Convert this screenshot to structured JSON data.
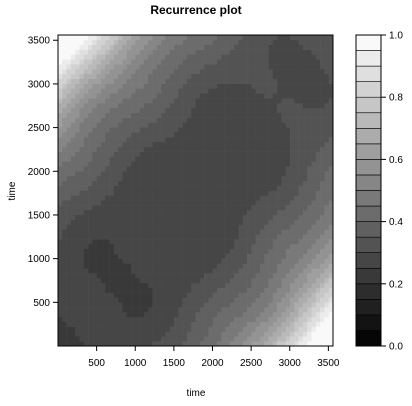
{
  "chart_data": {
    "type": "heatmap",
    "title": "Recurrence plot",
    "xlabel": "time",
    "ylabel": "time",
    "xlim": [
      0,
      3560
    ],
    "ylim": [
      0,
      3560
    ],
    "xticks": [
      500,
      1000,
      1500,
      2000,
      2500,
      3000,
      3500
    ],
    "yticks": [
      500,
      1000,
      1500,
      2000,
      2500,
      3000,
      3500
    ],
    "tick_labels": [
      "500",
      "1000",
      "1500",
      "2000",
      "2500",
      "3000",
      "3500"
    ],
    "grid": false,
    "colorbar": {
      "min": 0.0,
      "max": 1.0,
      "levels": 20,
      "ticks": [
        0.0,
        0.2,
        0.4,
        0.6,
        0.8,
        1.0
      ],
      "tick_labels": [
        "0.0",
        "0.2",
        "0.4",
        "0.6",
        "0.8",
        "1.0"
      ],
      "colors": {
        "low": "#000000",
        "high": "#ffffff"
      }
    },
    "z_description_values": {
      "diagonal_value": 0.24,
      "max_distance_value": 1.0,
      "matrix": "symmetric recurrence distance matrix; ~0.24 along diagonal rising to ~1.0 at far corners (top-left, bottom-right)"
    }
  }
}
